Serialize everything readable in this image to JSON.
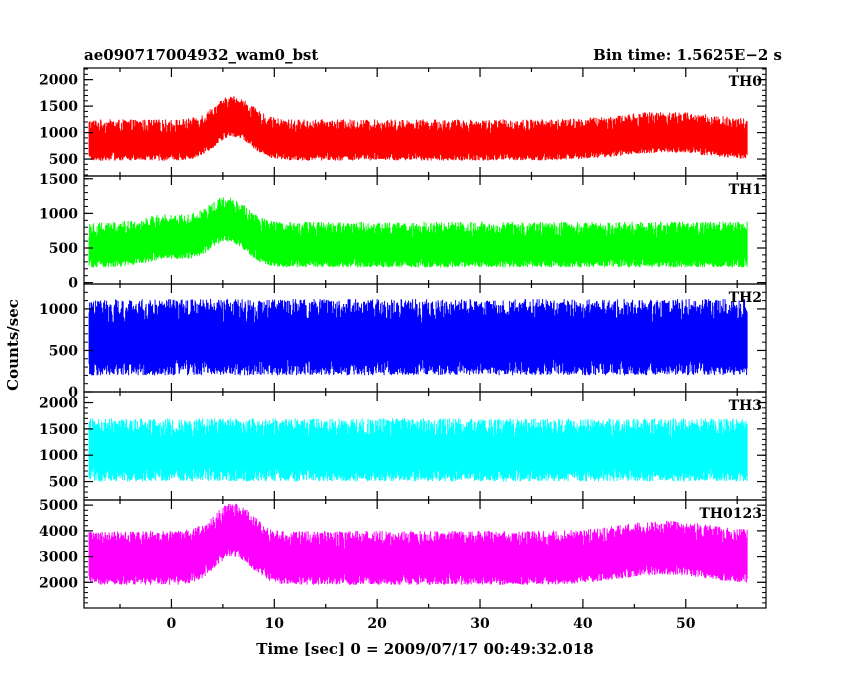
{
  "chart_data": {
    "type": "line",
    "title_left": "ae090717004932_wam0_bst",
    "title_right": "Bin time: 1.5625E−2 s",
    "xlabel": "Time [sec] 0 = 2009/07/17 00:49:32.018",
    "ylabel": "Counts/sec",
    "xlim": [
      -8.5,
      57.8
    ],
    "x_ticks": [
      "0",
      "10",
      "20",
      "30",
      "40",
      "50"
    ],
    "x_start": -8,
    "x_end": 56,
    "grid": false,
    "panels": [
      {
        "name": "TH0",
        "color": "#ff0000",
        "ylim": [
          180,
          2220
        ],
        "y_ticks": [
          "500",
          "1000",
          "1500",
          "2000"
        ],
        "baseline": 800,
        "noise_high": 450,
        "noise_low": 330,
        "features": [
          {
            "x": 6,
            "width": 2.5,
            "amplitude": 450
          },
          {
            "x": 48,
            "width": 6,
            "amplitude": 150
          }
        ]
      },
      {
        "name": "TH1",
        "color": "#00ff00",
        "ylim": [
          -20,
          1540
        ],
        "y_ticks": [
          "0",
          "500",
          "1000",
          "1500"
        ],
        "baseline": 500,
        "noise_high": 380,
        "noise_low": 280,
        "features": [
          {
            "x": 5.5,
            "width": 2.5,
            "amplitude": 370
          },
          {
            "x": 0,
            "width": 3,
            "amplitude": 120
          }
        ]
      },
      {
        "name": "TH2",
        "color": "#0000ff",
        "ylim": [
          0,
          1300
        ],
        "y_ticks": [
          "0",
          "500",
          "1000"
        ],
        "baseline": 620,
        "noise_high": 500,
        "noise_low": 420,
        "features": []
      },
      {
        "name": "TH3",
        "color": "#00ffff",
        "ylim": [
          150,
          2200
        ],
        "y_ticks": [
          "500",
          "1000",
          "1500",
          "2000"
        ],
        "baseline": 1050,
        "noise_high": 650,
        "noise_low": 550,
        "features": []
      },
      {
        "name": "TH0123",
        "color": "#ff00ff",
        "ylim": [
          1000,
          5200
        ],
        "y_ticks": [
          "2000",
          "3000",
          "4000",
          "5000"
        ],
        "baseline": 2850,
        "noise_high": 1150,
        "noise_low": 950,
        "features": [
          {
            "x": 6,
            "width": 2.5,
            "amplitude": 1100
          },
          {
            "x": 48,
            "width": 6,
            "amplitude": 400
          }
        ]
      }
    ]
  }
}
